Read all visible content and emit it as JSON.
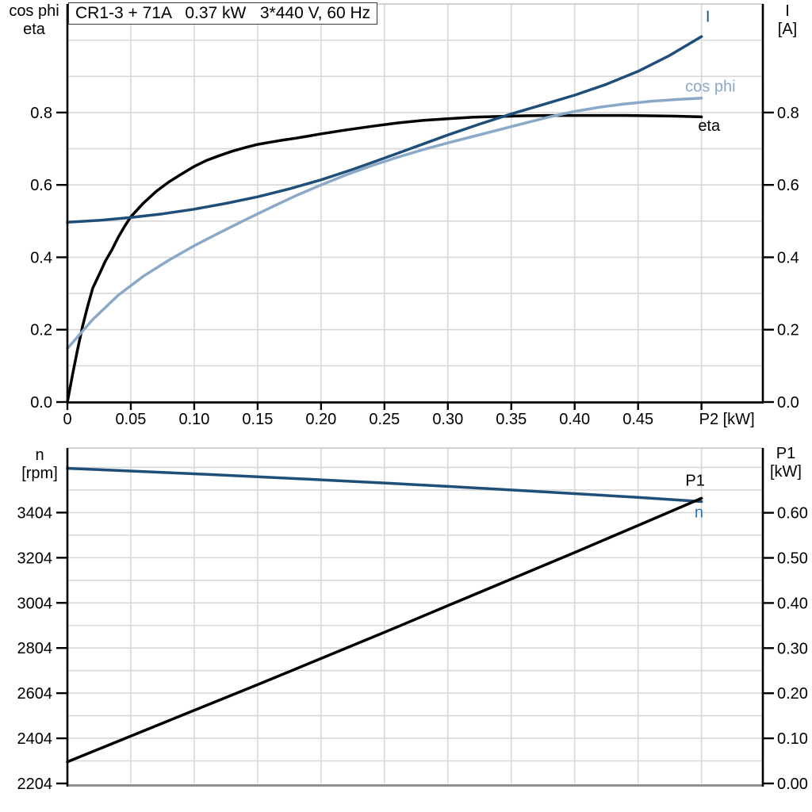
{
  "colors": {
    "navy": "#1f4e79",
    "light_blue": "#8aa9c8",
    "black": "#000000",
    "grid": "#d8d8d8",
    "chart_border": "#c6c6c6",
    "bottom_border": "#8f8f8f",
    "n_label_blue": "#2e75b6",
    "title_border": "#3a3a3a"
  },
  "chart_data": [
    {
      "type": "line",
      "title": "CR1-3 + 71A   0.37 kW   3*440 V, 60 Hz",
      "left_axis_header": [
        "cos phi",
        "eta"
      ],
      "right_axis_header": [
        "I",
        "[A]"
      ],
      "xlabel": "P2 [kW]",
      "xlabel_x": 0.52,
      "xlim": [
        0,
        0.549
      ],
      "ylim_left": [
        0,
        1.1
      ],
      "ylim_right": [
        0,
        1.1
      ],
      "grid": true,
      "legend_position": "inline-labels",
      "x_ticks": [
        0,
        0.05,
        0.1,
        0.15,
        0.2,
        0.25,
        0.3,
        0.35,
        0.4,
        0.45,
        0.5
      ],
      "x_tick_labels": [
        "0",
        "0.05",
        "0.10",
        "0.15",
        "0.20",
        "0.25",
        "0.30",
        "0.35",
        "0.40",
        "0.45",
        ""
      ],
      "left_ticks": [
        0,
        0.2,
        0.4,
        0.6,
        0.8
      ],
      "left_tick_labels": [
        "0.0",
        "0.2",
        "0.4",
        "0.6",
        "0.8"
      ],
      "right_ticks": [
        0,
        0.2,
        0.4,
        0.6,
        0.8
      ],
      "right_tick_labels": [
        "0.0",
        "0.2",
        "0.4",
        "0.6",
        "0.8"
      ],
      "x_grid": [
        0.05,
        0.1,
        0.15,
        0.2,
        0.25,
        0.3,
        0.35,
        0.4,
        0.45,
        0.5
      ],
      "y_grid": [
        0.1,
        0.2,
        0.3,
        0.4,
        0.5,
        0.6,
        0.7,
        0.8,
        0.9,
        1.0
      ],
      "series": [
        {
          "name": "eta",
          "label": "eta",
          "axis": "left",
          "color_key": "black",
          "label_color_key": "black",
          "label_anchor": [
            0.506,
            0.765
          ],
          "points": [
            [
              0,
              0
            ],
            [
              0.004,
              0.075
            ],
            [
              0.008,
              0.145
            ],
            [
              0.012,
              0.21
            ],
            [
              0.016,
              0.265
            ],
            [
              0.02,
              0.315
            ],
            [
              0.025,
              0.352
            ],
            [
              0.03,
              0.39
            ],
            [
              0.035,
              0.42
            ],
            [
              0.04,
              0.455
            ],
            [
              0.045,
              0.485
            ],
            [
              0.05,
              0.512
            ],
            [
              0.06,
              0.55
            ],
            [
              0.07,
              0.582
            ],
            [
              0.08,
              0.608
            ],
            [
              0.09,
              0.63
            ],
            [
              0.1,
              0.651
            ],
            [
              0.11,
              0.668
            ],
            [
              0.12,
              0.681
            ],
            [
              0.13,
              0.693
            ],
            [
              0.14,
              0.703
            ],
            [
              0.15,
              0.712
            ],
            [
              0.16,
              0.718
            ],
            [
              0.17,
              0.724
            ],
            [
              0.18,
              0.729
            ],
            [
              0.19,
              0.735
            ],
            [
              0.2,
              0.741
            ],
            [
              0.22,
              0.752
            ],
            [
              0.24,
              0.762
            ],
            [
              0.26,
              0.771
            ],
            [
              0.28,
              0.778
            ],
            [
              0.3,
              0.783
            ],
            [
              0.32,
              0.787
            ],
            [
              0.34,
              0.789
            ],
            [
              0.36,
              0.791
            ],
            [
              0.38,
              0.792
            ],
            [
              0.4,
              0.792
            ],
            [
              0.42,
              0.792
            ],
            [
              0.44,
              0.792
            ],
            [
              0.46,
              0.791
            ],
            [
              0.48,
              0.79
            ],
            [
              0.5,
              0.788
            ]
          ]
        },
        {
          "name": "cos-phi",
          "label": "cos phi",
          "axis": "left",
          "color_key": "light_blue",
          "label_color_key": "light_blue",
          "label_anchor": [
            0.507,
            0.873
          ],
          "points": [
            [
              0,
              0.148
            ],
            [
              0.02,
              0.228
            ],
            [
              0.04,
              0.295
            ],
            [
              0.06,
              0.348
            ],
            [
              0.08,
              0.392
            ],
            [
              0.1,
              0.432
            ],
            [
              0.12,
              0.468
            ],
            [
              0.14,
              0.503
            ],
            [
              0.16,
              0.537
            ],
            [
              0.18,
              0.57
            ],
            [
              0.2,
              0.6
            ],
            [
              0.22,
              0.628
            ],
            [
              0.24,
              0.653
            ],
            [
              0.26,
              0.676
            ],
            [
              0.28,
              0.697
            ],
            [
              0.3,
              0.716
            ],
            [
              0.32,
              0.734
            ],
            [
              0.34,
              0.752
            ],
            [
              0.36,
              0.77
            ],
            [
              0.38,
              0.788
            ],
            [
              0.4,
              0.803
            ],
            [
              0.42,
              0.815
            ],
            [
              0.44,
              0.824
            ],
            [
              0.46,
              0.831
            ],
            [
              0.48,
              0.836
            ],
            [
              0.5,
              0.84
            ]
          ]
        },
        {
          "name": "I",
          "label": "I",
          "axis": "left",
          "color_key": "navy",
          "label_color_key": "navy",
          "label_anchor": [
            0.505,
            1.066
          ],
          "points": [
            [
              0,
              0.497
            ],
            [
              0.025,
              0.502
            ],
            [
              0.05,
              0.51
            ],
            [
              0.075,
              0.52
            ],
            [
              0.1,
              0.533
            ],
            [
              0.125,
              0.549
            ],
            [
              0.15,
              0.567
            ],
            [
              0.175,
              0.589
            ],
            [
              0.2,
              0.614
            ],
            [
              0.225,
              0.643
            ],
            [
              0.25,
              0.674
            ],
            [
              0.275,
              0.706
            ],
            [
              0.3,
              0.738
            ],
            [
              0.325,
              0.768
            ],
            [
              0.35,
              0.796
            ],
            [
              0.375,
              0.822
            ],
            [
              0.4,
              0.848
            ],
            [
              0.425,
              0.878
            ],
            [
              0.45,
              0.914
            ],
            [
              0.475,
              0.958
            ],
            [
              0.5,
              1.01
            ]
          ]
        }
      ]
    },
    {
      "type": "line",
      "title": "",
      "left_axis_header": [
        "n",
        "[rpm]"
      ],
      "right_axis_header": [
        "P1",
        "[kW]"
      ],
      "xlabel": "",
      "xlim": [
        0,
        0.549
      ],
      "ylim_left": [
        2204,
        3690
      ],
      "ylim_right": [
        0,
        0.7435
      ],
      "grid": true,
      "legend_position": "inline-labels",
      "x_ticks": [],
      "x_tick_labels": [],
      "left_ticks": [
        2204,
        2404,
        2604,
        2804,
        3004,
        3204,
        3404
      ],
      "left_tick_labels": [
        "2204",
        "2404",
        "2604",
        "2804",
        "3004",
        "3204",
        "3404"
      ],
      "right_ticks": [
        0,
        0.1,
        0.2,
        0.3,
        0.4,
        0.5,
        0.6
      ],
      "right_tick_labels": [
        "0.00",
        "0.10",
        "0.20",
        "0.30",
        "0.40",
        "0.50",
        "0.60"
      ],
      "x_grid": [
        0.05,
        0.1,
        0.15,
        0.2,
        0.25,
        0.3,
        0.35,
        0.4,
        0.45,
        0.5
      ],
      "y_grid": [
        2304,
        2404,
        2504,
        2604,
        2704,
        2804,
        2904,
        3004,
        3104,
        3204,
        3304,
        3404,
        3504,
        3604
      ],
      "series": [
        {
          "name": "n",
          "label": "n",
          "axis": "left",
          "color_key": "navy",
          "label_color_key": "n_label_blue",
          "label_anchor": [
            0.498,
            3407
          ],
          "points": [
            [
              0,
              3600
            ],
            [
              0.05,
              3588
            ],
            [
              0.1,
              3576
            ],
            [
              0.15,
              3563
            ],
            [
              0.2,
              3549
            ],
            [
              0.25,
              3535
            ],
            [
              0.3,
              3520
            ],
            [
              0.35,
              3504
            ],
            [
              0.4,
              3488
            ],
            [
              0.45,
              3471
            ],
            [
              0.5,
              3453
            ]
          ]
        },
        {
          "name": "P1",
          "label": "P1",
          "axis": "right",
          "color_key": "black",
          "label_color_key": "black",
          "label_anchor": [
            0.495,
            0.672
          ],
          "points": [
            [
              0,
              0.048
            ],
            [
              0.05,
              0.105
            ],
            [
              0.1,
              0.162
            ],
            [
              0.15,
              0.219
            ],
            [
              0.2,
              0.277
            ],
            [
              0.25,
              0.335
            ],
            [
              0.3,
              0.394
            ],
            [
              0.35,
              0.453
            ],
            [
              0.4,
              0.512
            ],
            [
              0.45,
              0.572
            ],
            [
              0.5,
              0.632
            ]
          ]
        }
      ]
    }
  ]
}
